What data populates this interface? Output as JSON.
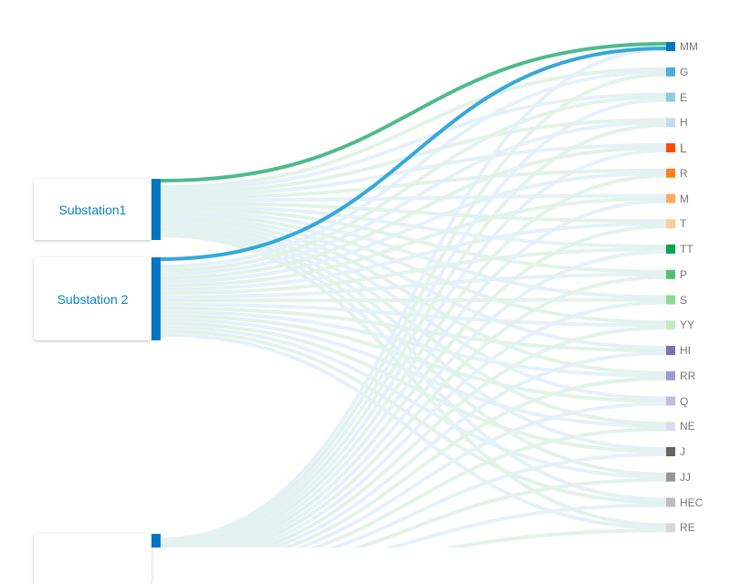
{
  "sources": [
    {
      "label": "Substation1",
      "color": "#0077c2"
    },
    {
      "label": "Substation 2",
      "color": "#0077c2"
    },
    {
      "label": "",
      "color": "#0077c2"
    }
  ],
  "targets": [
    {
      "label": "MM",
      "color": "#0077c0"
    },
    {
      "label": "G",
      "color": "#4aafdd"
    },
    {
      "label": "E",
      "color": "#8ecbe6"
    },
    {
      "label": "H",
      "color": "#c2dcf0"
    },
    {
      "label": "L",
      "color": "#ff4a0a"
    },
    {
      "label": "R",
      "color": "#ff8019"
    },
    {
      "label": "M",
      "color": "#ffa95e"
    },
    {
      "label": "T",
      "color": "#ffcc99"
    },
    {
      "label": "TT",
      "color": "#00a651"
    },
    {
      "label": "P",
      "color": "#4dc46b"
    },
    {
      "label": "S",
      "color": "#8fd98f"
    },
    {
      "label": "YY",
      "color": "#c2ecc2"
    },
    {
      "label": "HI",
      "color": "#7b6fb8"
    },
    {
      "label": "RR",
      "color": "#9f9ad0"
    },
    {
      "label": "Q",
      "color": "#bebde3"
    },
    {
      "label": "NE",
      "color": "#dcdcee"
    },
    {
      "label": "J",
      "color": "#636363"
    },
    {
      "label": "JJ",
      "color": "#969696"
    },
    {
      "label": "HEC",
      "color": "#bdbdbd"
    },
    {
      "label": "RE",
      "color": "#d9d9d9"
    }
  ],
  "highlighted_links": [
    {
      "source": "Substation1",
      "target": "MM",
      "color": "#4dbb8a"
    },
    {
      "source": "Substation 2",
      "target": "MM",
      "color": "#35a8dc"
    }
  ],
  "link_colors": [
    "#e4f1fa",
    "#e2f3e8"
  ]
}
